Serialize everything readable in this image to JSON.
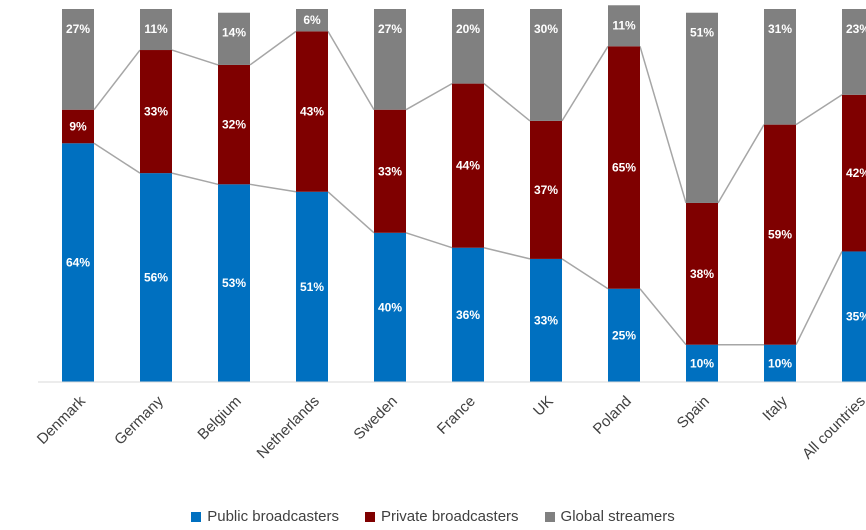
{
  "chart_data": {
    "type": "bar",
    "stacked": true,
    "categories": [
      "Denmark",
      "Germany",
      "Belgium",
      "Netherlands",
      "Sweden",
      "France",
      "UK",
      "Poland",
      "Spain",
      "Italy",
      "All countries"
    ],
    "series": [
      {
        "name": "Public broadcasters",
        "color": "#0070c0",
        "values": [
          64,
          56,
          53,
          51,
          40,
          36,
          33,
          25,
          10,
          10,
          35
        ]
      },
      {
        "name": "Private broadcasters",
        "color": "#7f0000",
        "values": [
          9,
          33,
          32,
          43,
          33,
          44,
          37,
          65,
          38,
          59,
          42
        ]
      },
      {
        "name": "Global streamers",
        "color": "#808080",
        "values": [
          27,
          11,
          14,
          6,
          27,
          20,
          30,
          11,
          51,
          31,
          23
        ]
      }
    ],
    "value_suffix": "%",
    "ylim": [
      0,
      100
    ],
    "grid": false,
    "legend_position": "bottom",
    "connector_lines_color": "#a6a6a6"
  }
}
